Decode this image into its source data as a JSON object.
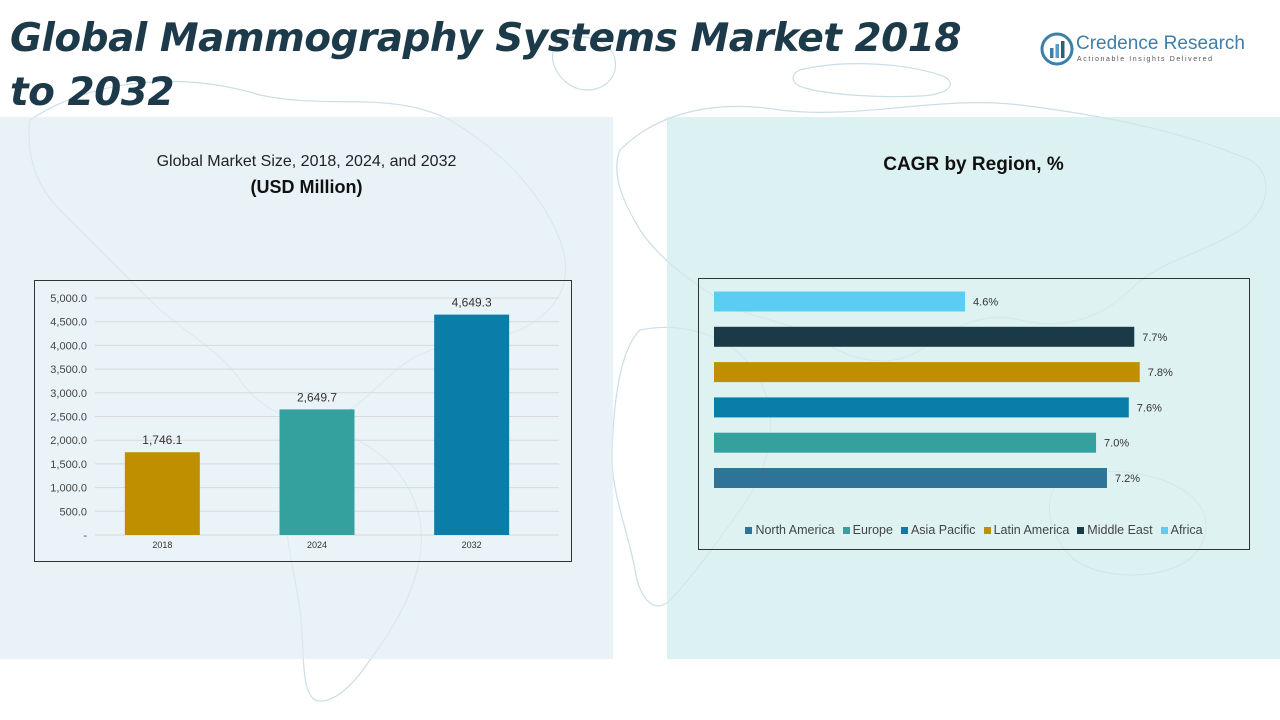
{
  "page_title": "Global Mammography Systems Market 2018 to 2032",
  "logo": {
    "name": "Credence Research",
    "tagline": "Actionable Insights Delivered"
  },
  "colors": {
    "title": "#1c3a4a",
    "bar_2018": "#bf8f00",
    "bar_2024": "#35a19e",
    "bar_2032": "#0a7ea8",
    "north_america": "#2e7498",
    "europe": "#35a19e",
    "asia_pacific": "#0a7ea8",
    "latin_america": "#bf8f00",
    "middle_east": "#1a3a48",
    "africa": "#5ccdf2"
  },
  "chart_data": [
    {
      "type": "bar",
      "title": "Global Market Size, 2018, 2024, and 2032",
      "subtitle": "(USD Million)",
      "categories": [
        "2018",
        "2024",
        "2032"
      ],
      "values": [
        1746.1,
        2649.7,
        4649.3
      ],
      "value_labels": [
        "1,746.1",
        "2,649.7",
        "4,649.3"
      ],
      "ylim": [
        0,
        5000
      ],
      "yticks": [
        0,
        500,
        1000,
        1500,
        2000,
        2500,
        3000,
        3500,
        4000,
        4500,
        5000
      ],
      "ytick_labels": [
        "-",
        "500.0",
        "1,000.0",
        "1,500.0",
        "2,000.0",
        "2,500.0",
        "3,000.0",
        "3,500.0",
        "4,000.0",
        "4,500.0",
        "5,000.0"
      ],
      "grid": true
    },
    {
      "type": "bar",
      "orientation": "horizontal",
      "title": "CAGR by Region, %",
      "categories": [
        "North America",
        "Europe",
        "Asia Pacific",
        "Latin America",
        "Middle East",
        "Africa"
      ],
      "values": [
        7.2,
        7.0,
        7.6,
        7.8,
        7.7,
        4.6
      ],
      "value_labels": [
        "7.2%",
        "7.0%",
        "7.6%",
        "7.8%",
        "7.7%",
        "4.6%"
      ],
      "xlim": [
        0,
        8.3
      ],
      "legend_position": "bottom"
    }
  ]
}
